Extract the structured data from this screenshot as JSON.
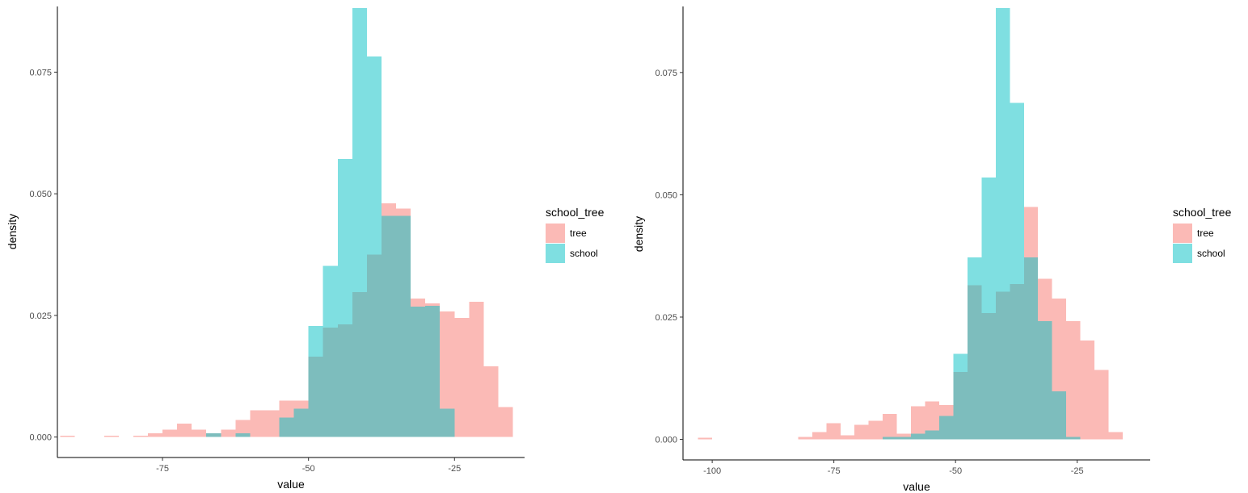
{
  "chart_data": [
    {
      "type": "histogram",
      "xlabel": "value",
      "ylabel": "density",
      "xlim": [
        -93,
        -13
      ],
      "ylim": [
        -0.0042,
        0.0885
      ],
      "x_ticks": [
        -75,
        -50,
        -25
      ],
      "x_tick_labels": [
        "-75",
        "-50",
        "-25"
      ],
      "y_ticks": [
        0,
        0.025,
        0.05,
        0.075
      ],
      "y_tick_labels": [
        "0.000",
        "0.025",
        "0.050",
        "0.075"
      ],
      "grid": false,
      "legend": {
        "title": "school_tree",
        "position": "right"
      },
      "bin_width": 2.5,
      "series": [
        {
          "name": "tree",
          "color": "#F8766D",
          "opacity": 0.5,
          "bins": [
            [
              -91.25,
              0.0003
            ],
            [
              -83.75,
              0.0003
            ],
            [
              -78.75,
              0.0003
            ],
            [
              -76.25,
              0.0008
            ],
            [
              -73.75,
              0.0015
            ],
            [
              -71.25,
              0.0028
            ],
            [
              -68.75,
              0.0015
            ],
            [
              -66.25,
              0.0008
            ],
            [
              -63.75,
              0.0015
            ],
            [
              -61.25,
              0.0035
            ],
            [
              -58.75,
              0.0055
            ],
            [
              -56.25,
              0.0055
            ],
            [
              -53.75,
              0.0075
            ],
            [
              -51.25,
              0.0075
            ],
            [
              -48.75,
              0.0165
            ],
            [
              -46.25,
              0.0225
            ],
            [
              -43.75,
              0.0232
            ],
            [
              -41.25,
              0.0298
            ],
            [
              -38.75,
              0.0375
            ],
            [
              -36.25,
              0.048
            ],
            [
              -33.75,
              0.047
            ],
            [
              -31.25,
              0.0285
            ],
            [
              -28.75,
              0.0275
            ],
            [
              -26.25,
              0.0258
            ],
            [
              -23.75,
              0.0245
            ],
            [
              -21.25,
              0.0278
            ],
            [
              -18.75,
              0.0145
            ],
            [
              -16.25,
              0.0062
            ]
          ]
        },
        {
          "name": "school",
          "color": "#00BFC4",
          "opacity": 0.5,
          "bins": [
            [
              -66.25,
              0.0008
            ],
            [
              -61.25,
              0.0008
            ],
            [
              -53.75,
              0.004
            ],
            [
              -51.25,
              0.0058
            ],
            [
              -48.75,
              0.0228
            ],
            [
              -46.25,
              0.0352
            ],
            [
              -43.75,
              0.0572
            ],
            [
              -41.25,
              0.0882
            ],
            [
              -38.75,
              0.0782
            ],
            [
              -36.25,
              0.0455
            ],
            [
              -33.75,
              0.0455
            ],
            [
              -31.25,
              0.0268
            ],
            [
              -28.75,
              0.027
            ],
            [
              -26.25,
              0.0058
            ]
          ]
        }
      ]
    },
    {
      "type": "histogram",
      "xlabel": "value",
      "ylabel": "density",
      "xlim": [
        -106,
        -10
      ],
      "ylim": [
        -0.0042,
        0.0885
      ],
      "x_ticks": [
        -100,
        -75,
        -50,
        -25
      ],
      "x_tick_labels": [
        "-100",
        "-75",
        "-50",
        "-25"
      ],
      "y_ticks": [
        0,
        0.025,
        0.05,
        0.075
      ],
      "y_tick_labels": [
        "0.000",
        "0.025",
        "0.050",
        "0.075"
      ],
      "grid": false,
      "legend": {
        "title": "school_tree",
        "position": "right"
      },
      "bin_width": 2.9,
      "series": [
        {
          "name": "tree",
          "color": "#F8766D",
          "opacity": 0.5,
          "bins": [
            [
              -101.45,
              0.0003
            ],
            [
              -80.9,
              0.0005
            ],
            [
              -78.0,
              0.0015
            ],
            [
              -75.1,
              0.0033
            ],
            [
              -72.2,
              0.0008
            ],
            [
              -69.3,
              0.003
            ],
            [
              -66.4,
              0.0038
            ],
            [
              -63.5,
              0.0052
            ],
            [
              -60.6,
              0.0012
            ],
            [
              -57.7,
              0.0068
            ],
            [
              -54.8,
              0.0078
            ],
            [
              -51.9,
              0.007
            ],
            [
              -49.0,
              0.0138
            ],
            [
              -46.1,
              0.0315
            ],
            [
              -43.2,
              0.0258
            ],
            [
              -40.3,
              0.0302
            ],
            [
              -37.4,
              0.0318
            ],
            [
              -34.5,
              0.0475
            ],
            [
              -31.6,
              0.0328
            ],
            [
              -28.7,
              0.0288
            ],
            [
              -25.8,
              0.0242
            ],
            [
              -22.9,
              0.0202
            ],
            [
              -20.0,
              0.0142
            ],
            [
              -17.1,
              0.0015
            ]
          ]
        },
        {
          "name": "school",
          "color": "#00BFC4",
          "opacity": 0.5,
          "bins": [
            [
              -63.5,
              0.0005
            ],
            [
              -60.6,
              0.0005
            ],
            [
              -57.7,
              0.0012
            ],
            [
              -54.8,
              0.0018
            ],
            [
              -51.9,
              0.0048
            ],
            [
              -49.0,
              0.0175
            ],
            [
              -46.1,
              0.0372
            ],
            [
              -43.2,
              0.0535
            ],
            [
              -40.3,
              0.0882
            ],
            [
              -37.4,
              0.0688
            ],
            [
              -34.5,
              0.0372
            ],
            [
              -31.6,
              0.0242
            ],
            [
              -28.7,
              0.0098
            ],
            [
              -25.8,
              0.0005
            ]
          ]
        }
      ]
    }
  ]
}
